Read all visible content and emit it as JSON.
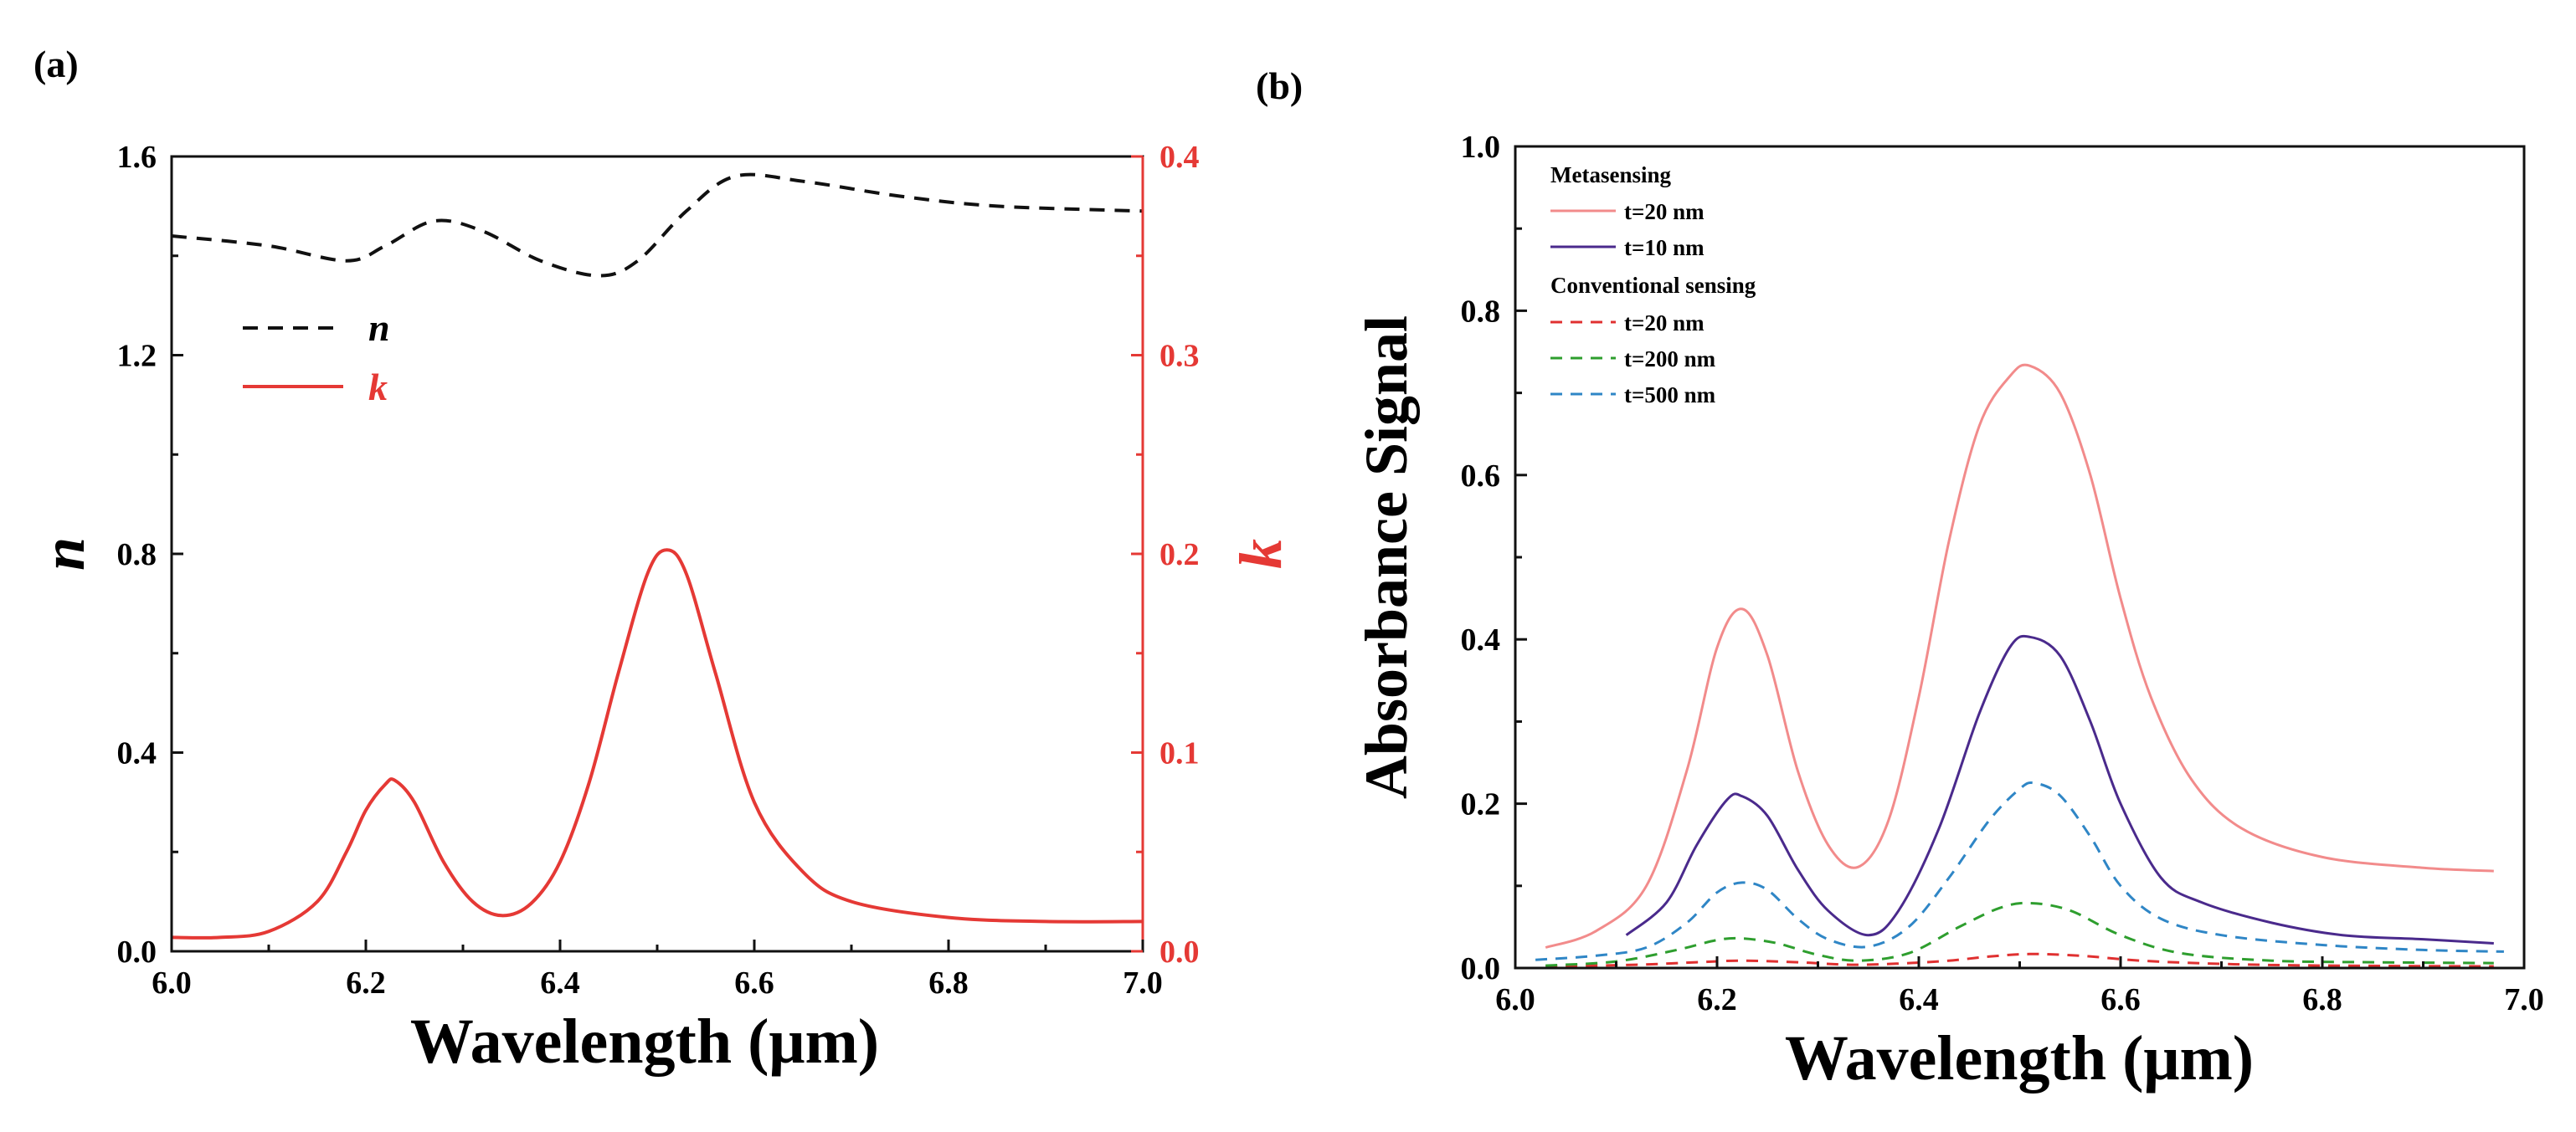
{
  "chart_data": [
    {
      "panel_label": "(a)",
      "type": "line",
      "xlabel": "Wavelength (μm)",
      "ylabel_left": "n",
      "ylabel_right": "k",
      "xlim": [
        6.0,
        7.0
      ],
      "ylim_left": [
        0.0,
        1.6
      ],
      "ylim_right": [
        0.0,
        0.4
      ],
      "x_ticks": [
        "6.0",
        "6.2",
        "6.4",
        "6.6",
        "6.8",
        "7.0"
      ],
      "y_ticks_left": [
        "0.0",
        "0.4",
        "0.8",
        "1.2",
        "1.6"
      ],
      "y_ticks_right": [
        "0.0",
        "0.1",
        "0.2",
        "0.3",
        "0.4"
      ],
      "legend": "upper-left",
      "series": [
        {
          "name": "n",
          "axis": "left",
          "color": "#111111",
          "dash": "dashed",
          "x": [
            6.0,
            6.1,
            6.18,
            6.22,
            6.27,
            6.32,
            6.38,
            6.44,
            6.48,
            6.53,
            6.58,
            6.65,
            6.75,
            6.85,
            7.0
          ],
          "y": [
            1.44,
            1.42,
            1.39,
            1.42,
            1.47,
            1.45,
            1.39,
            1.36,
            1.39,
            1.49,
            1.56,
            1.55,
            1.52,
            1.5,
            1.49
          ]
        },
        {
          "name": "k",
          "axis": "right",
          "color": "#e53935",
          "dash": "solid",
          "x": [
            6.0,
            6.05,
            6.1,
            6.15,
            6.18,
            6.2,
            6.22,
            6.23,
            6.25,
            6.28,
            6.31,
            6.34,
            6.37,
            6.4,
            6.43,
            6.46,
            6.49,
            6.51,
            6.53,
            6.56,
            6.6,
            6.65,
            6.7,
            6.8,
            6.9,
            7.0
          ],
          "y": [
            0.007,
            0.007,
            0.01,
            0.025,
            0.05,
            0.071,
            0.084,
            0.086,
            0.075,
            0.045,
            0.025,
            0.018,
            0.024,
            0.045,
            0.085,
            0.14,
            0.19,
            0.202,
            0.19,
            0.14,
            0.075,
            0.04,
            0.025,
            0.017,
            0.015,
            0.015
          ]
        }
      ]
    },
    {
      "panel_label": "(b)",
      "type": "line",
      "xlabel": "Wavelength (μm)",
      "ylabel": "Absorbance Signal",
      "xlim": [
        6.0,
        7.0
      ],
      "ylim": [
        0.0,
        1.0
      ],
      "x_ticks": [
        "6.0",
        "6.2",
        "6.4",
        "6.6",
        "6.8",
        "7.0"
      ],
      "y_ticks": [
        "0.0",
        "0.2",
        "0.4",
        "0.6",
        "0.8",
        "1.0"
      ],
      "legend": "upper-left",
      "legend_groups": [
        "Metasensing",
        "Conventional sensing"
      ],
      "series": [
        {
          "name": "t=20 nm",
          "group": "Metasensing",
          "color": "#f28b8b",
          "dash": "solid",
          "x": [
            6.03,
            6.08,
            6.13,
            6.17,
            6.2,
            6.225,
            6.25,
            6.28,
            6.31,
            6.34,
            6.37,
            6.4,
            6.43,
            6.46,
            6.49,
            6.51,
            6.54,
            6.57,
            6.6,
            6.63,
            6.67,
            6.72,
            6.8,
            6.9,
            6.97
          ],
          "y": [
            0.025,
            0.045,
            0.1,
            0.24,
            0.39,
            0.437,
            0.38,
            0.24,
            0.15,
            0.123,
            0.18,
            0.33,
            0.52,
            0.66,
            0.72,
            0.733,
            0.7,
            0.6,
            0.45,
            0.33,
            0.23,
            0.17,
            0.135,
            0.122,
            0.118
          ]
        },
        {
          "name": "t=10 nm",
          "group": "Metasensing",
          "color": "#4a2a8c",
          "dash": "solid",
          "x": [
            6.11,
            6.15,
            6.18,
            6.21,
            6.225,
            6.25,
            6.28,
            6.31,
            6.35,
            6.38,
            6.42,
            6.46,
            6.49,
            6.51,
            6.54,
            6.57,
            6.6,
            6.64,
            6.68,
            6.75,
            6.82,
            6.9,
            6.97
          ],
          "y": [
            0.04,
            0.08,
            0.15,
            0.205,
            0.209,
            0.185,
            0.12,
            0.07,
            0.04,
            0.07,
            0.17,
            0.31,
            0.39,
            0.403,
            0.38,
            0.3,
            0.2,
            0.11,
            0.08,
            0.055,
            0.04,
            0.035,
            0.03
          ]
        },
        {
          "name": "t=20 nm",
          "group": "Conventional sensing",
          "color": "#e03030",
          "dash": "dashed",
          "x": [
            6.03,
            6.12,
            6.18,
            6.225,
            6.28,
            6.34,
            6.42,
            6.47,
            6.51,
            6.56,
            6.62,
            6.7,
            6.8,
            6.97
          ],
          "y": [
            0.002,
            0.004,
            0.007,
            0.009,
            0.007,
            0.004,
            0.008,
            0.014,
            0.017,
            0.015,
            0.009,
            0.005,
            0.003,
            0.002
          ]
        },
        {
          "name": "t=200 nm",
          "group": "Conventional sensing",
          "color": "#2e9e2e",
          "dash": "dashed",
          "x": [
            6.03,
            6.1,
            6.16,
            6.2,
            6.225,
            6.26,
            6.3,
            6.34,
            6.39,
            6.44,
            6.48,
            6.51,
            6.55,
            6.6,
            6.66,
            6.75,
            6.85,
            6.97
          ],
          "y": [
            0.003,
            0.008,
            0.022,
            0.034,
            0.036,
            0.03,
            0.016,
            0.009,
            0.018,
            0.05,
            0.073,
            0.079,
            0.07,
            0.04,
            0.018,
            0.009,
            0.007,
            0.006
          ]
        },
        {
          "name": "t=500 nm",
          "group": "Conventional sensing",
          "color": "#2f86c6",
          "dash": "dashed",
          "x": [
            6.02,
            6.08,
            6.13,
            6.17,
            6.2,
            6.225,
            6.25,
            6.28,
            6.31,
            6.35,
            6.39,
            6.43,
            6.47,
            6.5,
            6.515,
            6.54,
            6.57,
            6.6,
            6.64,
            6.7,
            6.8,
            6.9,
            6.98
          ],
          "y": [
            0.01,
            0.015,
            0.025,
            0.055,
            0.092,
            0.104,
            0.095,
            0.06,
            0.035,
            0.026,
            0.05,
            0.11,
            0.18,
            0.218,
            0.225,
            0.21,
            0.16,
            0.1,
            0.06,
            0.04,
            0.028,
            0.022,
            0.02
          ]
        }
      ]
    }
  ]
}
